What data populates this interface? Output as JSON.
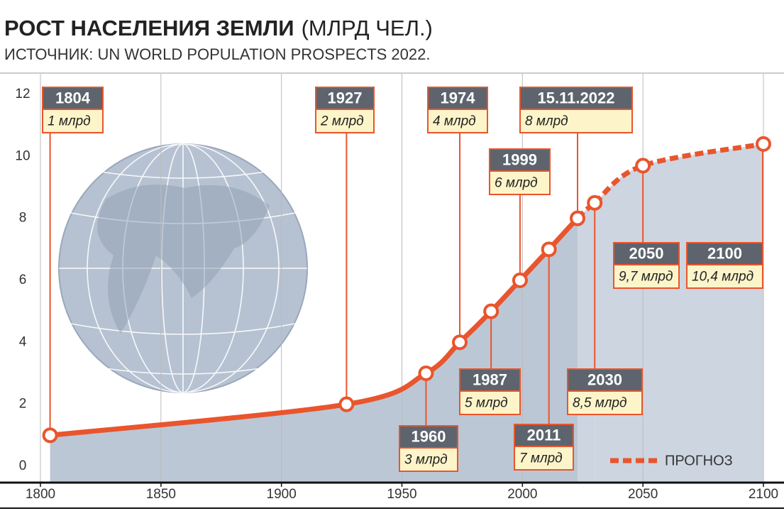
{
  "chart_data": {
    "type": "line",
    "title": "РОСТ НАСЕЛЕНИЯ ЗЕМЛИ",
    "title_unit": "(МЛРД ЧЕЛ.)",
    "subtitle": "ИСТОЧНИК: UN WORLD POPULATION PROSPECTS 2022.",
    "xlim": [
      1800,
      2100
    ],
    "xticks": [
      1800,
      1850,
      1900,
      1950,
      2000,
      2050,
      2100
    ],
    "ylim": [
      0,
      12
    ],
    "yticks": [
      0,
      2,
      4,
      6,
      8,
      10,
      12
    ],
    "series": [
      {
        "color": "#e9552d",
        "x": [
          1804,
          1927,
          1960,
          1974,
          1987,
          1999,
          2011,
          2022.87
        ],
        "x_labels": [
          "1804",
          "1927",
          "1960",
          "1974",
          "1987",
          "1999",
          "2011",
          "15.11.2022"
        ],
        "values": [
          1,
          2,
          3,
          4,
          5,
          6,
          7,
          8
        ],
        "value_labels": [
          "1 млрд",
          "2 млрд",
          "3 млрд",
          "4 млрд",
          "5 млрд",
          "6 млрд",
          "7 млрд",
          "8 млрд"
        ]
      },
      {
        "name": "ПРОГНОЗ",
        "color": "#e9552d",
        "dashed": true,
        "x": [
          2030,
          2050,
          2100
        ],
        "x_labels": [
          "2030",
          "2050",
          "2100"
        ],
        "values": [
          8.5,
          9.7,
          10.4
        ],
        "value_labels": [
          "8,5 млрд",
          "9,7 млрд",
          "10,4 млрд"
        ]
      }
    ]
  }
}
